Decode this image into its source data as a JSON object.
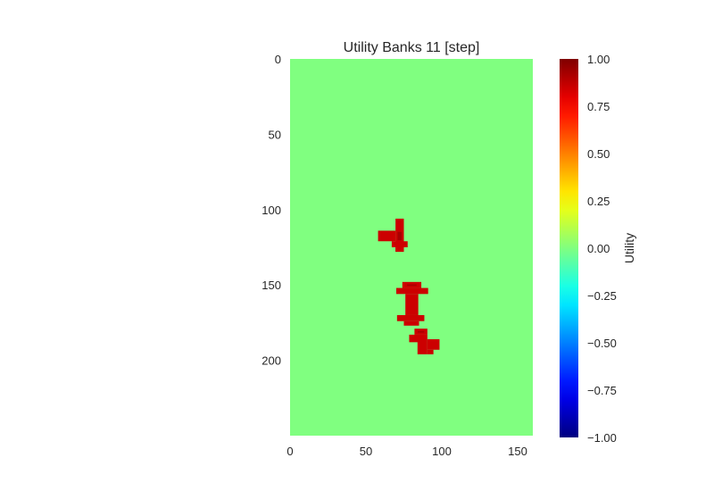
{
  "chart_data": {
    "type": "heatmap",
    "title": "Utility Banks 11 [step]",
    "grid": false,
    "image_extent": {
      "x": [
        0,
        160
      ],
      "y": [
        0,
        250
      ]
    },
    "background_value": 0.0,
    "x_ticks": [
      0,
      50,
      100,
      150
    ],
    "y_ticks": [
      0,
      50,
      100,
      150,
      200
    ],
    "colormap": "jet",
    "colorbar": {
      "label": "Utility",
      "range": [
        -1.0,
        1.0
      ],
      "ticks": [
        1.0,
        0.75,
        0.5,
        0.25,
        0.0,
        -0.25,
        -0.5,
        -0.75,
        -1.0
      ],
      "tick_labels": [
        "1.00",
        "0.75",
        "0.50",
        "0.25",
        "0.00",
        "−0.25",
        "−0.50",
        "−0.75",
        "−1.00"
      ]
    },
    "features": [
      {
        "name": "arrow-left-down",
        "value": 0.85,
        "core_value": 1.0,
        "rects": [
          [
            69.5,
            106,
            5.5,
            22
          ],
          [
            58,
            114,
            11.5,
            7
          ],
          [
            67,
            121,
            10.5,
            4
          ],
          [
            69.5,
            125,
            5.5,
            3
          ]
        ]
      },
      {
        "name": "arrow-up-down",
        "value": 0.85,
        "core_value": 1.0,
        "rects": [
          [
            74,
            148,
            12.5,
            4
          ],
          [
            70,
            152,
            21,
            4
          ],
          [
            76,
            156,
            8.5,
            14
          ],
          [
            70.5,
            170,
            18,
            4
          ],
          [
            75,
            174,
            10,
            3
          ]
        ]
      },
      {
        "name": "arrow-up-right",
        "value": 0.85,
        "core_value": 1.0,
        "rects": [
          [
            82,
            179,
            8.5,
            4
          ],
          [
            78.5,
            183,
            10,
            5
          ],
          [
            84,
            183,
            6.5,
            13
          ],
          [
            90.5,
            186,
            8,
            7
          ],
          [
            90.5,
            193,
            4,
            3
          ]
        ]
      }
    ]
  }
}
